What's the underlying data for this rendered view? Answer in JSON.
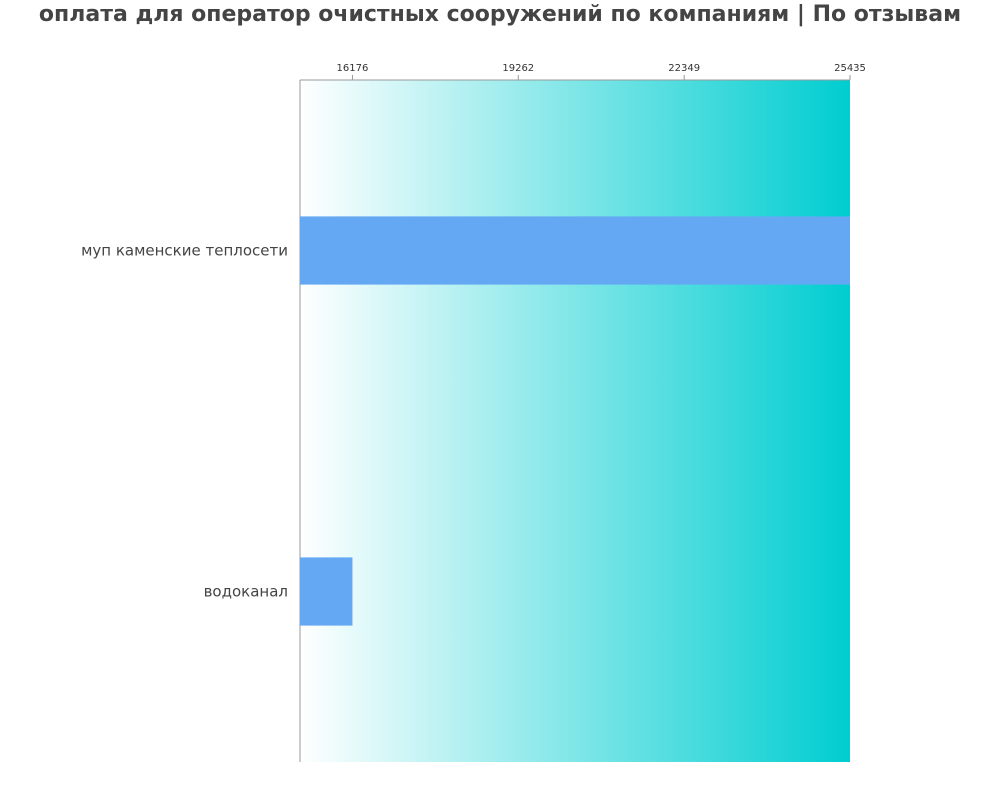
{
  "chart_data": {
    "type": "bar",
    "orientation": "horizontal",
    "title": "оплата для оператор очистных сооружений по компаниям  | По отзывам",
    "categories": [
      "муп каменские теплосети",
      "водоканал"
    ],
    "values": [
      25435,
      16176
    ],
    "xticks": [
      "16176",
      "19262",
      "22349",
      "25435"
    ],
    "xlim": [
      15200,
      25435
    ],
    "xaxis_position": "top",
    "grid": false,
    "colors": {
      "bar": "#64a8f4",
      "gradient_start": "#ffffff",
      "gradient_end": "#00cdd0",
      "axis": "#999999"
    }
  }
}
